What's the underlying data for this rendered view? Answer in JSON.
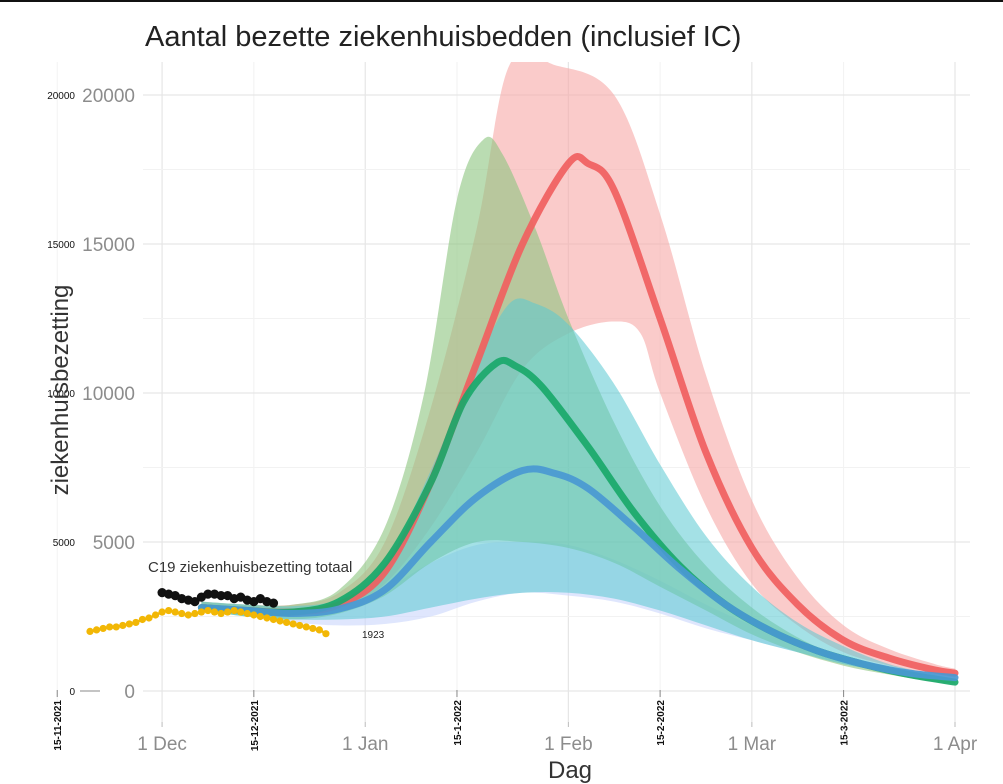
{
  "chart_data": {
    "type": "area",
    "title": "Aantal bezette ziekenhuisbedden (inclusief IC)",
    "xlabel": "Dag",
    "ylabel": "ziekenhuisbezetting",
    "x_ticks": [
      "1 Dec",
      "1 Jan",
      "1 Feb",
      "1 Mar",
      "1 Apr"
    ],
    "x_date_ticks": [
      "15-11-2021",
      "15-12-2021",
      "15-1-2022",
      "15-2-2022",
      "15-3-2022"
    ],
    "y_ticks": [
      "0",
      "5000",
      "10000",
      "15000",
      "20000"
    ],
    "y_ticks_overlay": [
      "0",
      "5000",
      "10000",
      "15000",
      "20000"
    ],
    "ylim": [
      0,
      20000
    ],
    "xlim": [
      "2021-11-20",
      "2022-04-03"
    ],
    "grid": true,
    "scenarios": [
      {
        "color": "#f0605f",
        "band_color": "#f7a9a6",
        "median": [
          [
            "2021-12-07",
            2800
          ],
          [
            "2021-12-14",
            2700
          ],
          [
            "2021-12-21",
            2650
          ],
          [
            "2021-12-28",
            2900
          ],
          [
            "2022-01-04",
            4000
          ],
          [
            "2022-01-11",
            7000
          ],
          [
            "2022-01-18",
            11000
          ],
          [
            "2022-01-25",
            15000
          ],
          [
            "2022-02-01",
            17700
          ],
          [
            "2022-02-04",
            17700
          ],
          [
            "2022-02-08",
            16800
          ],
          [
            "2022-02-15",
            12500
          ],
          [
            "2022-02-22",
            8000
          ],
          [
            "2022-03-01",
            4800
          ],
          [
            "2022-03-08",
            2900
          ],
          [
            "2022-03-15",
            1700
          ],
          [
            "2022-03-22",
            1100
          ],
          [
            "2022-03-29",
            700
          ],
          [
            "2022-04-01",
            600
          ]
        ],
        "lower": [
          [
            "2021-12-07",
            2700
          ],
          [
            "2021-12-14",
            2600
          ],
          [
            "2021-12-21",
            2500
          ],
          [
            "2021-12-28",
            2700
          ],
          [
            "2022-01-04",
            3600
          ],
          [
            "2022-01-11",
            5500
          ],
          [
            "2022-01-18",
            8000
          ],
          [
            "2022-01-25",
            10800
          ],
          [
            "2022-02-01",
            12000
          ],
          [
            "2022-02-08",
            12400
          ],
          [
            "2022-02-12",
            12000
          ],
          [
            "2022-02-15",
            10000
          ],
          [
            "2022-02-22",
            6200
          ],
          [
            "2022-03-01",
            3600
          ],
          [
            "2022-03-08",
            2200
          ],
          [
            "2022-03-15",
            1300
          ],
          [
            "2022-03-22",
            850
          ],
          [
            "2022-03-29",
            550
          ],
          [
            "2022-04-01",
            450
          ]
        ],
        "upper": [
          [
            "2021-12-07",
            3000
          ],
          [
            "2021-12-14",
            2900
          ],
          [
            "2021-12-21",
            2900
          ],
          [
            "2021-12-28",
            3300
          ],
          [
            "2022-01-04",
            5000
          ],
          [
            "2022-01-11",
            9500
          ],
          [
            "2022-01-18",
            15500
          ],
          [
            "2022-01-23",
            21000
          ],
          [
            "2022-01-30",
            21000
          ],
          [
            "2022-02-08",
            20000
          ],
          [
            "2022-02-15",
            16000
          ],
          [
            "2022-02-22",
            10600
          ],
          [
            "2022-03-01",
            6400
          ],
          [
            "2022-03-08",
            3800
          ],
          [
            "2022-03-15",
            2200
          ],
          [
            "2022-03-22",
            1400
          ],
          [
            "2022-03-29",
            900
          ],
          [
            "2022-04-01",
            750
          ]
        ]
      },
      {
        "color": "#1aa86a",
        "band_color": "#8cc47e",
        "median": [
          [
            "2021-12-07",
            2800
          ],
          [
            "2021-12-14",
            2700
          ],
          [
            "2021-12-21",
            2650
          ],
          [
            "2021-12-28",
            3000
          ],
          [
            "2022-01-04",
            4300
          ],
          [
            "2022-01-11",
            7000
          ],
          [
            "2022-01-16",
            9700
          ],
          [
            "2022-01-21",
            11000
          ],
          [
            "2022-01-24",
            10900
          ],
          [
            "2022-01-28",
            10200
          ],
          [
            "2022-02-04",
            8200
          ],
          [
            "2022-02-11",
            6000
          ],
          [
            "2022-02-18",
            4200
          ],
          [
            "2022-02-25",
            2900
          ],
          [
            "2022-03-04",
            2000
          ],
          [
            "2022-03-11",
            1350
          ],
          [
            "2022-03-18",
            900
          ],
          [
            "2022-03-25",
            550
          ],
          [
            "2022-04-01",
            300
          ]
        ],
        "lower": [
          [
            "2021-12-07",
            2700
          ],
          [
            "2021-12-14",
            2500
          ],
          [
            "2021-12-21",
            2400
          ],
          [
            "2021-12-28",
            2600
          ],
          [
            "2022-01-04",
            3200
          ],
          [
            "2022-01-11",
            4300
          ],
          [
            "2022-01-18",
            5000
          ],
          [
            "2022-01-25",
            5000
          ],
          [
            "2022-02-01",
            4800
          ],
          [
            "2022-02-08",
            4300
          ],
          [
            "2022-02-15",
            3500
          ],
          [
            "2022-02-22",
            2700
          ],
          [
            "2022-03-01",
            1900
          ],
          [
            "2022-03-08",
            1300
          ],
          [
            "2022-03-15",
            850
          ],
          [
            "2022-03-22",
            550
          ],
          [
            "2022-03-29",
            300
          ],
          [
            "2022-04-01",
            250
          ]
        ],
        "upper": [
          [
            "2021-12-07",
            3000
          ],
          [
            "2021-12-14",
            2900
          ],
          [
            "2021-12-21",
            2900
          ],
          [
            "2021-12-28",
            3400
          ],
          [
            "2022-01-04",
            5500
          ],
          [
            "2022-01-10",
            10000
          ],
          [
            "2022-01-15",
            16500
          ],
          [
            "2022-01-19",
            18500
          ],
          [
            "2022-01-22",
            18000
          ],
          [
            "2022-01-27",
            15500
          ],
          [
            "2022-02-01",
            12500
          ],
          [
            "2022-02-08",
            9000
          ],
          [
            "2022-02-15",
            6200
          ],
          [
            "2022-02-22",
            4200
          ],
          [
            "2022-03-01",
            2800
          ],
          [
            "2022-03-08",
            1800
          ],
          [
            "2022-03-15",
            1100
          ],
          [
            "2022-03-22",
            650
          ],
          [
            "2022-03-29",
            400
          ],
          [
            "2022-04-01",
            300
          ]
        ]
      },
      {
        "color": "#4a98d3",
        "band_color": "#5ac8d2",
        "median": [
          [
            "2021-12-07",
            2800
          ],
          [
            "2021-12-14",
            2700
          ],
          [
            "2021-12-21",
            2600
          ],
          [
            "2021-12-28",
            2750
          ],
          [
            "2022-01-04",
            3400
          ],
          [
            "2022-01-11",
            5000
          ],
          [
            "2022-01-18",
            6500
          ],
          [
            "2022-01-25",
            7400
          ],
          [
            "2022-01-30",
            7300
          ],
          [
            "2022-02-04",
            6800
          ],
          [
            "2022-02-11",
            5500
          ],
          [
            "2022-02-18",
            4100
          ],
          [
            "2022-02-25",
            2900
          ],
          [
            "2022-03-04",
            2000
          ],
          [
            "2022-03-11",
            1350
          ],
          [
            "2022-03-18",
            900
          ],
          [
            "2022-03-25",
            600
          ],
          [
            "2022-04-01",
            450
          ]
        ],
        "lower": [
          [
            "2021-12-07",
            2700
          ],
          [
            "2021-12-14",
            2500
          ],
          [
            "2021-12-21",
            2400
          ],
          [
            "2021-12-28",
            2400
          ],
          [
            "2022-01-04",
            2500
          ],
          [
            "2022-01-11",
            2800
          ],
          [
            "2022-01-18",
            3100
          ],
          [
            "2022-01-25",
            3300
          ],
          [
            "2022-02-01",
            3300
          ],
          [
            "2022-02-08",
            3100
          ],
          [
            "2022-02-15",
            2700
          ],
          [
            "2022-02-22",
            2200
          ],
          [
            "2022-03-01",
            1700
          ],
          [
            "2022-03-08",
            1300
          ],
          [
            "2022-03-15",
            900
          ],
          [
            "2022-03-22",
            650
          ],
          [
            "2022-03-29",
            450
          ],
          [
            "2022-04-01",
            350
          ]
        ],
        "upper": [
          [
            "2021-12-07",
            3000
          ],
          [
            "2021-12-14",
            2900
          ],
          [
            "2021-12-21",
            2850
          ],
          [
            "2021-12-28",
            3100
          ],
          [
            "2022-01-04",
            4300
          ],
          [
            "2022-01-11",
            7400
          ],
          [
            "2022-01-18",
            11000
          ],
          [
            "2022-01-23",
            13000
          ],
          [
            "2022-01-27",
            13000
          ],
          [
            "2022-02-01",
            12300
          ],
          [
            "2022-02-08",
            10300
          ],
          [
            "2022-02-15",
            7600
          ],
          [
            "2022-02-22",
            5200
          ],
          [
            "2022-03-01",
            3500
          ],
          [
            "2022-03-08",
            2300
          ],
          [
            "2022-03-15",
            1500
          ],
          [
            "2022-03-22",
            900
          ],
          [
            "2022-03-29",
            550
          ],
          [
            "2022-04-01",
            400
          ]
        ]
      },
      {
        "color": "#aebff5",
        "band_color": "#c9d5fb",
        "lower": [
          [
            "2021-12-07",
            2700
          ],
          [
            "2021-12-14",
            2500
          ],
          [
            "2021-12-21",
            2300
          ],
          [
            "2021-12-28",
            2200
          ],
          [
            "2022-01-04",
            2250
          ],
          [
            "2022-01-11",
            2500
          ],
          [
            "2022-01-18",
            3000
          ],
          [
            "2022-01-25",
            3300
          ],
          [
            "2022-02-01",
            3200
          ],
          [
            "2022-02-08",
            3000
          ],
          [
            "2022-02-15",
            2600
          ],
          [
            "2022-02-22",
            2100
          ],
          [
            "2022-03-01",
            1700
          ],
          [
            "2022-03-08",
            1300
          ],
          [
            "2022-03-15",
            900
          ],
          [
            "2022-03-22",
            650
          ],
          [
            "2022-03-29",
            450
          ],
          [
            "2022-04-01",
            350
          ]
        ],
        "upper": [
          [
            "2021-12-07",
            2800
          ],
          [
            "2021-12-14",
            2700
          ],
          [
            "2021-12-21",
            2600
          ],
          [
            "2021-12-28",
            2750
          ],
          [
            "2022-01-04",
            3400
          ],
          [
            "2022-01-11",
            4300
          ],
          [
            "2022-01-18",
            4900
          ],
          [
            "2022-01-25",
            5000
          ],
          [
            "2022-02-01",
            4900
          ],
          [
            "2022-02-08",
            4400
          ],
          [
            "2022-02-15",
            3700
          ],
          [
            "2022-02-22",
            2900
          ],
          [
            "2022-03-01",
            2200
          ],
          [
            "2022-03-08",
            1600
          ],
          [
            "2022-03-15",
            1100
          ],
          [
            "2022-03-22",
            750
          ],
          [
            "2022-03-29",
            500
          ],
          [
            "2022-04-01",
            400
          ]
        ]
      }
    ],
    "observed_total": {
      "label": "C19 ziekenhuisbezetting totaal",
      "color": "#111111",
      "points": [
        [
          "2021-12-01",
          3300
        ],
        [
          "2021-12-02",
          3250
        ],
        [
          "2021-12-03",
          3200
        ],
        [
          "2021-12-04",
          3100
        ],
        [
          "2021-12-05",
          3050
        ],
        [
          "2021-12-06",
          3000
        ],
        [
          "2021-12-07",
          3150
        ],
        [
          "2021-12-08",
          3250
        ],
        [
          "2021-12-09",
          3250
        ],
        [
          "2021-12-10",
          3200
        ],
        [
          "2021-12-11",
          3200
        ],
        [
          "2021-12-12",
          3100
        ],
        [
          "2021-12-13",
          3150
        ],
        [
          "2021-12-14",
          3050
        ],
        [
          "2021-12-15",
          3000
        ],
        [
          "2021-12-16",
          3100
        ],
        [
          "2021-12-17",
          3000
        ],
        [
          "2021-12-18",
          2950
        ]
      ]
    },
    "observed_other": {
      "color": "#f2b705",
      "end_label": "1923",
      "points": [
        [
          "2021-11-20",
          2000
        ],
        [
          "2021-11-21",
          2050
        ],
        [
          "2021-11-22",
          2100
        ],
        [
          "2021-11-23",
          2150
        ],
        [
          "2021-11-24",
          2150
        ],
        [
          "2021-11-25",
          2200
        ],
        [
          "2021-11-26",
          2250
        ],
        [
          "2021-11-27",
          2300
        ],
        [
          "2021-11-28",
          2400
        ],
        [
          "2021-11-29",
          2450
        ],
        [
          "2021-11-30",
          2550
        ],
        [
          "2021-12-01",
          2650
        ],
        [
          "2021-12-02",
          2700
        ],
        [
          "2021-12-03",
          2650
        ],
        [
          "2021-12-04",
          2600
        ],
        [
          "2021-12-05",
          2550
        ],
        [
          "2021-12-06",
          2600
        ],
        [
          "2021-12-07",
          2650
        ],
        [
          "2021-12-08",
          2700
        ],
        [
          "2021-12-09",
          2650
        ],
        [
          "2021-12-10",
          2600
        ],
        [
          "2021-12-11",
          2650
        ],
        [
          "2021-12-12",
          2700
        ],
        [
          "2021-12-13",
          2650
        ],
        [
          "2021-12-14",
          2600
        ],
        [
          "2021-12-15",
          2550
        ],
        [
          "2021-12-16",
          2500
        ],
        [
          "2021-12-17",
          2450
        ],
        [
          "2021-12-18",
          2400
        ],
        [
          "2021-12-19",
          2350
        ],
        [
          "2021-12-20",
          2300
        ],
        [
          "2021-12-21",
          2250
        ],
        [
          "2021-12-22",
          2200
        ],
        [
          "2021-12-23",
          2150
        ],
        [
          "2021-12-24",
          2100
        ],
        [
          "2021-12-25",
          2050
        ],
        [
          "2021-12-26",
          1923
        ]
      ]
    }
  }
}
